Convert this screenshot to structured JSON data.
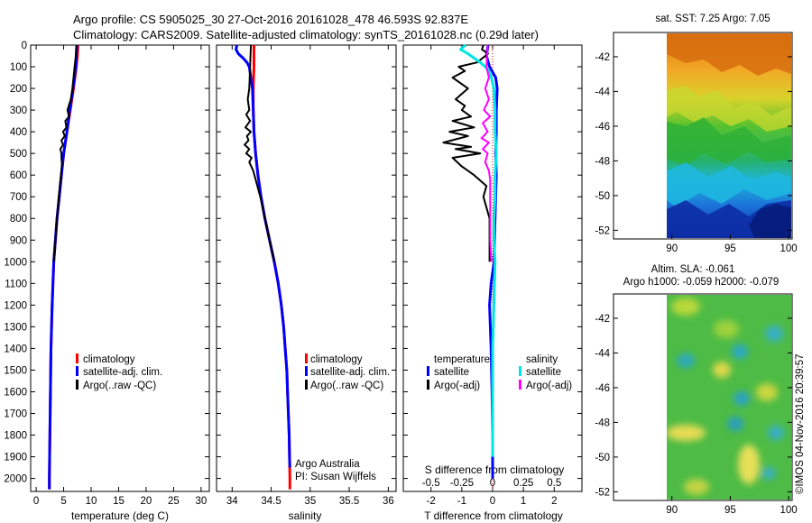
{
  "title": {
    "line1": "Argo profile: CS 5905025_30 27-Oct-2016 20161028_478 46.593S 92.837E",
    "line2": "Climatology: CARS2009. Satellite-adjusted climatology: synTS_20161028.nc (0.29d later)"
  },
  "colors": {
    "climatology": "#ff0000",
    "satellite": "#0000ff",
    "argo": "#000000",
    "sat_salinity": "#00e5e5",
    "argo_salinity": "#ff00ff"
  },
  "depth_ticks": [
    "0",
    "100",
    "200",
    "300",
    "400",
    "500",
    "600",
    "700",
    "800",
    "900",
    "1000",
    "1100",
    "1200",
    "1300",
    "1400",
    "1500",
    "1600",
    "1700",
    "1800",
    "1900",
    "2000"
  ],
  "chart_data": [
    {
      "type": "line",
      "name": "temperature",
      "xlabel": "temperature (deg C)",
      "ylabel": "depth",
      "xlim": [
        -1,
        31.5
      ],
      "ylim": [
        2060,
        0
      ],
      "xticks": [
        "0",
        "5",
        "10",
        "15",
        "20",
        "25",
        "30"
      ],
      "legend": [
        "climatology",
        "satellite-adj. clim.",
        "Argo(..raw -QC)"
      ],
      "series": [
        {
          "name": "climatology",
          "depth": [
            0,
            50,
            100,
            200,
            300,
            400,
            500,
            600,
            700,
            800,
            900,
            1000,
            1200,
            1400,
            1600,
            1800,
            2000,
            2050
          ],
          "values": [
            7.6,
            7.5,
            7.3,
            6.8,
            6.2,
            5.6,
            5.0,
            4.6,
            4.2,
            3.8,
            3.5,
            3.2,
            2.9,
            2.7,
            2.6,
            2.5,
            2.4,
            2.4
          ]
        },
        {
          "name": "satellite-adj. clim.",
          "depth": [
            0,
            50,
            100,
            200,
            300,
            400,
            500,
            600,
            700,
            800,
            900,
            1000,
            1200,
            1400,
            1600,
            1800,
            2000,
            2050
          ],
          "values": [
            7.4,
            7.3,
            7.2,
            6.7,
            6.1,
            5.6,
            5.0,
            4.6,
            4.2,
            3.8,
            3.5,
            3.2,
            2.9,
            2.7,
            2.6,
            2.5,
            2.4,
            2.4
          ]
        },
        {
          "name": "Argo(..raw -QC)",
          "depth": [
            0,
            50,
            100,
            150,
            200,
            250,
            300,
            330,
            350,
            380,
            400,
            420,
            440,
            460,
            480,
            500,
            520,
            550,
            600,
            700,
            800,
            900,
            1000
          ],
          "values": [
            7.3,
            7.2,
            7.0,
            6.8,
            6.6,
            6.3,
            5.7,
            6.0,
            5.3,
            5.5,
            4.9,
            5.2,
            4.6,
            4.9,
            4.4,
            4.6,
            4.6,
            4.7,
            4.5,
            4.1,
            3.8,
            3.5,
            3.2
          ]
        }
      ]
    },
    {
      "type": "line",
      "name": "salinity",
      "xlabel": "salinity",
      "ylabel": "depth",
      "xlim": [
        33.8,
        36.1
      ],
      "ylim": [
        2060,
        0
      ],
      "xticks": [
        "34",
        "34.5",
        "35",
        "35.5",
        "36"
      ],
      "legend": [
        "climatology",
        "satellite-adj. clim.",
        "Argo(..raw -QC)"
      ],
      "annotation": [
        "Argo Australia",
        "PI: Susan Wijffels"
      ],
      "series": [
        {
          "name": "climatology",
          "depth": [
            0,
            100,
            200,
            300,
            400,
            500,
            600,
            700,
            800,
            900,
            1000,
            1100,
            1200,
            1300,
            1400,
            1500,
            1600,
            1700,
            1800,
            1900,
            2000,
            2050
          ],
          "values": [
            34.28,
            34.28,
            34.27,
            34.27,
            34.28,
            34.3,
            34.33,
            34.37,
            34.42,
            34.48,
            34.54,
            34.59,
            34.63,
            34.66,
            34.68,
            34.7,
            34.71,
            34.72,
            34.73,
            34.735,
            34.74,
            34.74
          ]
        },
        {
          "name": "satellite-adj. clim.",
          "depth": [
            0,
            20,
            40,
            60,
            80,
            100,
            200,
            300,
            400,
            500,
            600,
            700,
            800,
            900,
            1000,
            1100,
            1200,
            1300,
            1400,
            1500,
            1600,
            1700,
            1800,
            1900,
            1950
          ],
          "values": [
            34.06,
            34.05,
            34.08,
            34.14,
            34.19,
            34.22,
            34.26,
            34.27,
            34.28,
            34.3,
            34.33,
            34.37,
            34.42,
            34.48,
            34.54,
            34.59,
            34.63,
            34.66,
            34.68,
            34.7,
            34.71,
            34.72,
            34.73,
            34.735,
            34.74
          ]
        },
        {
          "name": "Argo(..raw -QC)",
          "depth": [
            0,
            100,
            200,
            250,
            300,
            320,
            350,
            380,
            400,
            420,
            440,
            460,
            480,
            500,
            520,
            540,
            580,
            620,
            700,
            800,
            900,
            1000
          ],
          "values": [
            34.24,
            34.23,
            34.22,
            34.2,
            34.22,
            34.18,
            34.23,
            34.17,
            34.24,
            34.19,
            34.21,
            34.16,
            34.22,
            34.18,
            34.25,
            34.22,
            34.27,
            34.3,
            34.36,
            34.42,
            34.48,
            34.54
          ]
        }
      ]
    },
    {
      "type": "line",
      "name": "difference",
      "xlabel": "T difference from climatology",
      "xlabel_top": "S difference from climatology",
      "xlim": [
        -2.9,
        2.9
      ],
      "ylim": [
        2060,
        0
      ],
      "xticks": [
        "-2",
        "-1",
        "0",
        "1",
        "2"
      ],
      "xticks_top": [
        "-0.5",
        "-0.25",
        "0",
        "0.25",
        "0.5"
      ],
      "legend_headers": [
        "temperature",
        "salinity"
      ],
      "legend": [
        "satellite",
        "Argo(-adj)",
        "satellite",
        "Argo(-adj)"
      ],
      "series": [
        {
          "name": "temperature satellite",
          "depth": [
            0,
            50,
            100,
            150,
            200,
            300,
            400,
            500,
            600,
            700,
            800,
            900,
            1000,
            1100,
            1200,
            1400,
            1600,
            1800,
            2000
          ],
          "values": [
            -0.15,
            -0.2,
            -0.1,
            0.1,
            0.15,
            0.12,
            0.12,
            0.1,
            0.12,
            0.1,
            0.08,
            0.06,
            0.05,
            -0.05,
            -0.1,
            -0.05,
            -0.02,
            0,
            0
          ]
        },
        {
          "name": "temperature Argo(-adj)",
          "depth": [
            0,
            20,
            40,
            80,
            100,
            120,
            150,
            200,
            250,
            280,
            300,
            330,
            350,
            380,
            400,
            420,
            450,
            470,
            480,
            500,
            520,
            560,
            600,
            650,
            700,
            800,
            900,
            1000
          ],
          "values": [
            -0.3,
            -0.35,
            -0.15,
            -0.5,
            -1.1,
            -0.9,
            -1.3,
            -0.8,
            -1.2,
            -0.9,
            -1.0,
            -0.7,
            -1.3,
            -0.6,
            -1.4,
            -0.8,
            -1.6,
            -0.7,
            -1.2,
            -0.4,
            -1.3,
            -1.0,
            -0.6,
            -0.2,
            -0.3,
            -0.1,
            -0.1,
            -0.1
          ]
        },
        {
          "name": "salinity satellite",
          "depth": [
            0,
            20,
            40,
            60,
            80,
            100,
            120,
            150,
            200,
            300,
            400,
            500,
            600,
            700,
            800,
            900,
            1000,
            1200,
            1400,
            1600,
            1800,
            1900
          ],
          "values": [
            -0.22,
            -0.26,
            -0.2,
            -0.15,
            -0.1,
            -0.06,
            -0.03,
            -0.01,
            0.01,
            0.02,
            0.02,
            0.03,
            0.02,
            0.02,
            0.01,
            0.01,
            0.02,
            0.01,
            0.0,
            0.0,
            0.0,
            0.0
          ]
        },
        {
          "name": "salinity Argo(-adj)",
          "depth": [
            0,
            100,
            150,
            200,
            250,
            300,
            330,
            360,
            400,
            430,
            450,
            480,
            500,
            540,
            580,
            620,
            700,
            800,
            900,
            1000
          ],
          "values": [
            -0.04,
            -0.05,
            -0.03,
            -0.06,
            -0.03,
            -0.07,
            -0.02,
            -0.08,
            -0.04,
            -0.09,
            -0.03,
            -0.08,
            -0.04,
            -0.06,
            -0.03,
            -0.02,
            -0.02,
            -0.02,
            -0.02,
            -0.01
          ]
        }
      ]
    },
    {
      "type": "heatmap",
      "name": "sea surface temperature map",
      "title": "sat. SST: 7.25 Argo: 7.05",
      "xlim": [
        85,
        100.3
      ],
      "ylim": [
        -52.5,
        -40.6
      ],
      "xticks": [
        "90",
        "95",
        "100"
      ],
      "yticks": [
        "-42",
        "-44",
        "-46",
        "-48",
        "-50",
        "-52"
      ]
    },
    {
      "type": "heatmap",
      "name": "altimetry sea level anomaly map",
      "title_line1": "Altim. SLA: -0.061",
      "title_line2": "Argo h1000: -0.059 h2000: -0.079",
      "xlim": [
        85,
        100.3
      ],
      "ylim": [
        -52.5,
        -40.6
      ],
      "xticks": [
        "90",
        "95",
        "100"
      ],
      "yticks": [
        "-42",
        "-44",
        "-46",
        "-48",
        "-50",
        "-52"
      ]
    }
  ],
  "stamp": "©IMOS 04-Nov-2016 20:39:57"
}
